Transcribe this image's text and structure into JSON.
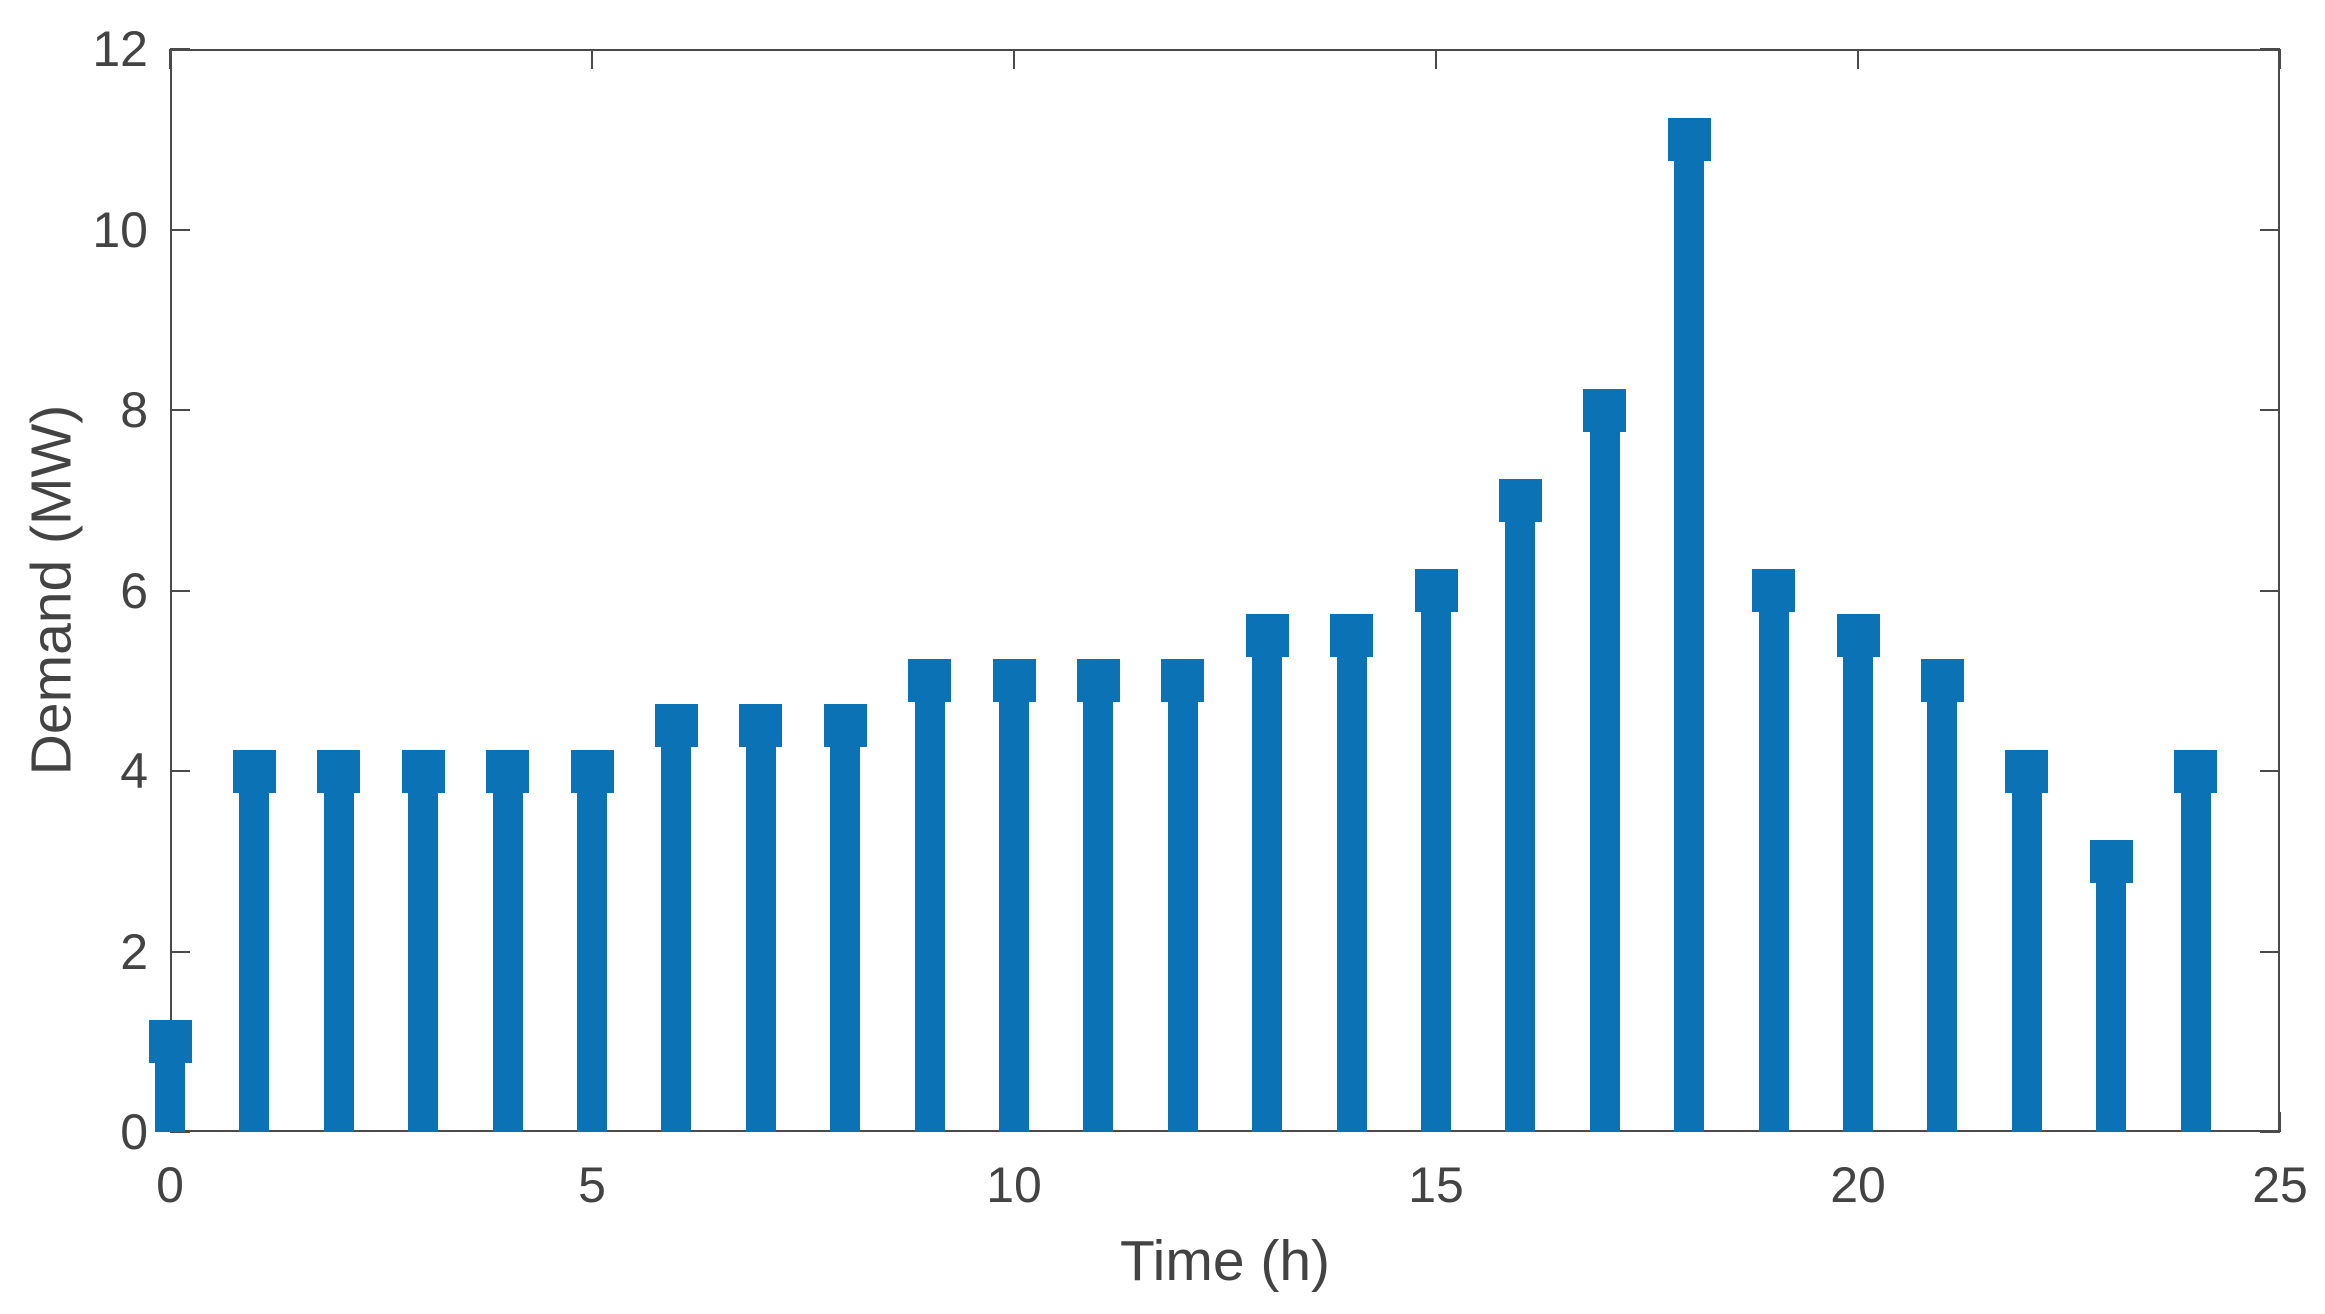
{
  "figure": {
    "background": "#ffffff"
  },
  "chart_data": {
    "type": "stem",
    "title": "",
    "xlabel": "Time (h)",
    "ylabel": "Demand (MW)",
    "x": [
      0,
      1,
      2,
      3,
      4,
      5,
      6,
      7,
      8,
      9,
      10,
      11,
      12,
      13,
      14,
      15,
      16,
      17,
      18,
      19,
      20,
      21,
      22,
      23,
      24
    ],
    "values": [
      1,
      4,
      4,
      4,
      4,
      4,
      4.5,
      4.5,
      4.5,
      5,
      5,
      5,
      5,
      5.5,
      5.5,
      6,
      7,
      8,
      11,
      6,
      5.5,
      5,
      4,
      3,
      4
    ],
    "xlim": [
      0,
      25
    ],
    "ylim": [
      0,
      12
    ],
    "xticks": [
      0,
      5,
      10,
      15,
      20,
      25
    ],
    "yticks": [
      0,
      2,
      4,
      6,
      8,
      10,
      12
    ],
    "xtick_labels": [
      "0",
      "5",
      "10",
      "15",
      "20",
      "25"
    ],
    "ytick_labels": [
      "0",
      "2",
      "4",
      "6",
      "8",
      "10",
      "12"
    ],
    "grid": false,
    "legend_position": "none",
    "marker": "square",
    "colors": {
      "series": "#0a72b5",
      "axis": "#4a4a4a",
      "text": "#434343"
    }
  }
}
